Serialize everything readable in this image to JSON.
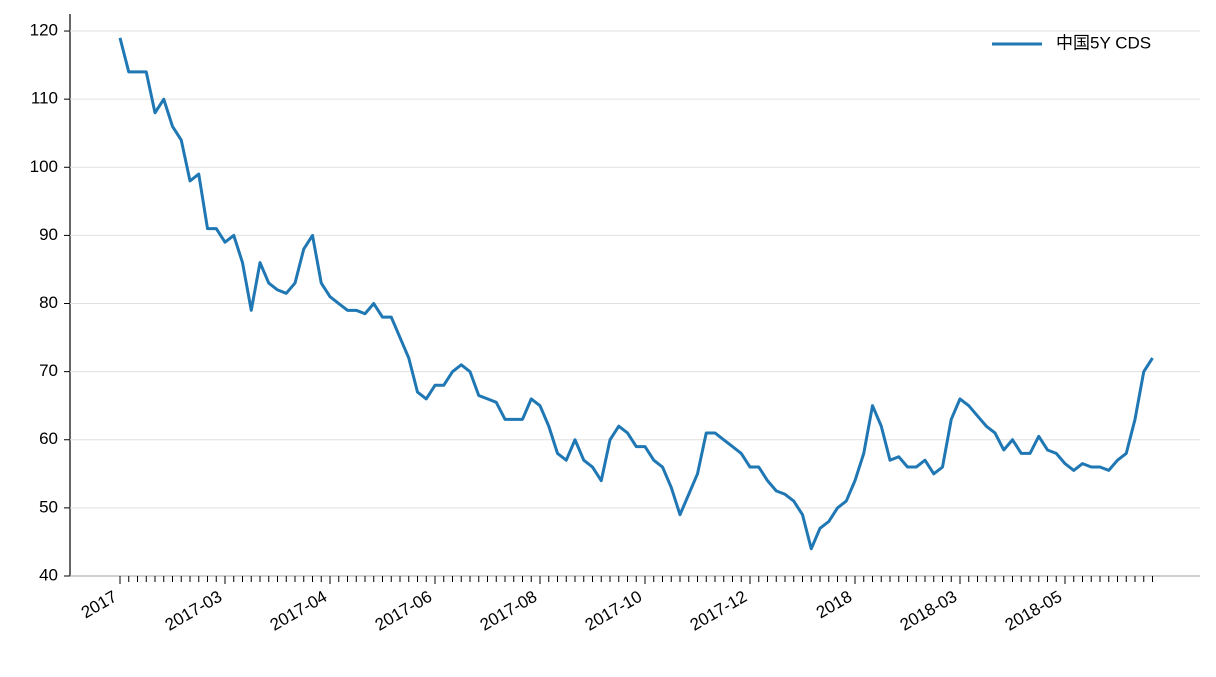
{
  "chart_data": {
    "type": "line",
    "categories": [
      "2017",
      null,
      null,
      null,
      null,
      null,
      null,
      null,
      null,
      null,
      null,
      null,
      "2017-03",
      null,
      null,
      null,
      null,
      null,
      null,
      null,
      null,
      null,
      null,
      null,
      "2017-04",
      null,
      null,
      null,
      null,
      null,
      null,
      null,
      null,
      null,
      null,
      null,
      "2017-06",
      null,
      null,
      null,
      null,
      null,
      null,
      null,
      null,
      null,
      null,
      null,
      "2017-08",
      null,
      null,
      null,
      null,
      null,
      null,
      null,
      null,
      null,
      null,
      null,
      "2017-10",
      null,
      null,
      null,
      null,
      null,
      null,
      null,
      null,
      null,
      null,
      null,
      "2017-12",
      null,
      null,
      null,
      null,
      null,
      null,
      null,
      null,
      null,
      null,
      null,
      "2018",
      null,
      null,
      null,
      null,
      null,
      null,
      null,
      null,
      null,
      null,
      null,
      "2018-03",
      null,
      null,
      null,
      null,
      null,
      null,
      null,
      null,
      null,
      null,
      null,
      "2018-05",
      null,
      null,
      null,
      null,
      null,
      null,
      null,
      null,
      null,
      null
    ],
    "series": [
      {
        "name": "中国5Y CDS",
        "color": "#1f77b4",
        "values": [
          119,
          114,
          114,
          114,
          108,
          110,
          106,
          104,
          98,
          99,
          91,
          91,
          89,
          90,
          86,
          79,
          86,
          83,
          82,
          81.5,
          83,
          88,
          90,
          83,
          81,
          80,
          79,
          79,
          78.5,
          80,
          78,
          78,
          75,
          72,
          67,
          66,
          68,
          68,
          70,
          71,
          70,
          66.5,
          66,
          65.5,
          63,
          63,
          63,
          66,
          65,
          62,
          58,
          57,
          60,
          57,
          56,
          54,
          60,
          62,
          61,
          59,
          59,
          57,
          56,
          53,
          49,
          52,
          55,
          61,
          61,
          60,
          59,
          58,
          56,
          56,
          54,
          52.5,
          52,
          51,
          49,
          44,
          47,
          48,
          50,
          51,
          54,
          58,
          65,
          62,
          57,
          57.5,
          56,
          56,
          57,
          55,
          56,
          63,
          66,
          65,
          63.5,
          62,
          61,
          58.5,
          60,
          58,
          58,
          60.5,
          58.5,
          58,
          56.5,
          55.5,
          56.5,
          56,
          56,
          55.5,
          57,
          58,
          63,
          70,
          72
        ]
      }
    ],
    "ylim": [
      40,
      122.5
    ],
    "yticks": [
      40,
      50,
      60,
      70,
      80,
      90,
      100,
      110,
      120
    ],
    "grid": true,
    "legend": "upper right"
  }
}
